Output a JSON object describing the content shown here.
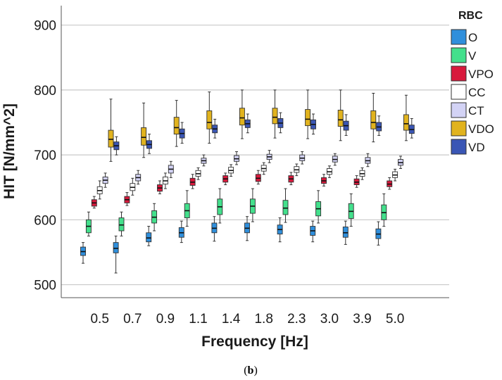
{
  "caption": {
    "open": "(",
    "letter": "b",
    "close": ")"
  },
  "chart_data": {
    "type": "box",
    "xlabel": "Frequency [Hz]",
    "ylabel": "HIT [N/mm^2]",
    "ylim": [
      480,
      930
    ],
    "yticks": [
      "500",
      "600",
      "700",
      "800",
      "900"
    ],
    "ytick_values": [
      500,
      600,
      700,
      800,
      900
    ],
    "grid": "horizontal",
    "legend_title": "RBC",
    "legend_position": "right",
    "categories": [
      "0.5",
      "0.7",
      "0.9",
      "1.1",
      "1.4",
      "1.8",
      "2.3",
      "3.0",
      "3.9",
      "5.0"
    ],
    "series": [
      {
        "name": "O",
        "color": "#2f8fdc",
        "boxes": [
          {
            "wlo": 533,
            "q1": 545,
            "med": 551,
            "q3": 558,
            "whi": 565
          },
          {
            "wlo": 518,
            "q1": 549,
            "med": 556,
            "q3": 565,
            "whi": 575
          },
          {
            "wlo": 560,
            "q1": 566,
            "med": 572,
            "q3": 580,
            "whi": 590
          },
          {
            "wlo": 565,
            "q1": 573,
            "med": 580,
            "q3": 588,
            "whi": 598
          },
          {
            "wlo": 567,
            "q1": 580,
            "med": 587,
            "q3": 595,
            "whi": 605
          },
          {
            "wlo": 568,
            "q1": 580,
            "med": 587,
            "q3": 595,
            "whi": 605
          },
          {
            "wlo": 566,
            "q1": 578,
            "med": 585,
            "q3": 592,
            "whi": 603
          },
          {
            "wlo": 566,
            "q1": 576,
            "med": 583,
            "q3": 590,
            "whi": 598
          },
          {
            "wlo": 562,
            "q1": 573,
            "med": 580,
            "q3": 589,
            "whi": 598
          },
          {
            "wlo": 561,
            "q1": 571,
            "med": 578,
            "q3": 586,
            "whi": 597
          }
        ]
      },
      {
        "name": "V",
        "color": "#43e08c",
        "boxes": [
          {
            "wlo": 575,
            "q1": 580,
            "med": 590,
            "q3": 600,
            "whi": 612
          },
          {
            "wlo": 575,
            "q1": 583,
            "med": 592,
            "q3": 603,
            "whi": 612
          },
          {
            "wlo": 583,
            "q1": 595,
            "med": 604,
            "q3": 614,
            "whi": 625
          },
          {
            "wlo": 590,
            "q1": 603,
            "med": 614,
            "q3": 625,
            "whi": 645
          },
          {
            "wlo": 595,
            "q1": 608,
            "med": 620,
            "q3": 632,
            "whi": 648
          },
          {
            "wlo": 597,
            "q1": 610,
            "med": 621,
            "q3": 632,
            "whi": 648
          },
          {
            "wlo": 596,
            "q1": 608,
            "med": 618,
            "q3": 630,
            "whi": 648
          },
          {
            "wlo": 595,
            "q1": 606,
            "med": 617,
            "q3": 628,
            "whi": 645
          },
          {
            "wlo": 590,
            "q1": 602,
            "med": 613,
            "q3": 625,
            "whi": 640
          },
          {
            "wlo": 590,
            "q1": 600,
            "med": 611,
            "q3": 623,
            "whi": 640
          }
        ]
      },
      {
        "name": "VPO",
        "color": "#d8193c",
        "boxes": [
          {
            "wlo": 618,
            "q1": 621,
            "med": 626,
            "q3": 631,
            "whi": 636
          },
          {
            "wlo": 622,
            "q1": 626,
            "med": 631,
            "q3": 636,
            "whi": 642
          },
          {
            "wlo": 640,
            "q1": 644,
            "med": 649,
            "q3": 654,
            "whi": 660
          },
          {
            "wlo": 648,
            "q1": 653,
            "med": 658,
            "q3": 664,
            "whi": 670
          },
          {
            "wlo": 654,
            "q1": 658,
            "med": 663,
            "q3": 668,
            "whi": 672
          },
          {
            "wlo": 655,
            "q1": 659,
            "med": 664,
            "q3": 670,
            "whi": 676
          },
          {
            "wlo": 654,
            "q1": 658,
            "med": 663,
            "q3": 668,
            "whi": 673
          },
          {
            "wlo": 652,
            "q1": 656,
            "med": 660,
            "q3": 665,
            "whi": 670
          },
          {
            "wlo": 650,
            "q1": 654,
            "med": 658,
            "q3": 663,
            "whi": 668
          },
          {
            "wlo": 647,
            "q1": 651,
            "med": 655,
            "q3": 660,
            "whi": 665
          }
        ]
      },
      {
        "name": "CC",
        "color": "#ffffff",
        "boxes": [
          {
            "wlo": 632,
            "q1": 640,
            "med": 645,
            "q3": 651,
            "whi": 660
          },
          {
            "wlo": 638,
            "q1": 645,
            "med": 650,
            "q3": 656,
            "whi": 664
          },
          {
            "wlo": 648,
            "q1": 655,
            "med": 660,
            "q3": 666,
            "whi": 672
          },
          {
            "wlo": 662,
            "q1": 667,
            "med": 671,
            "q3": 676,
            "whi": 680
          },
          {
            "wlo": 667,
            "q1": 672,
            "med": 676,
            "q3": 681,
            "whi": 685
          },
          {
            "wlo": 670,
            "q1": 675,
            "med": 679,
            "q3": 684,
            "whi": 688
          },
          {
            "wlo": 668,
            "q1": 673,
            "med": 677,
            "q3": 682,
            "whi": 686
          },
          {
            "wlo": 665,
            "q1": 670,
            "med": 674,
            "q3": 679,
            "whi": 683
          },
          {
            "wlo": 662,
            "q1": 667,
            "med": 671,
            "q3": 676,
            "whi": 680
          },
          {
            "wlo": 660,
            "q1": 665,
            "med": 669,
            "q3": 674,
            "whi": 678
          }
        ]
      },
      {
        "name": "CT",
        "color": "#d3d3f5",
        "boxes": [
          {
            "wlo": 650,
            "q1": 656,
            "med": 661,
            "q3": 666,
            "whi": 672
          },
          {
            "wlo": 655,
            "q1": 660,
            "med": 665,
            "q3": 670,
            "whi": 676
          },
          {
            "wlo": 665,
            "q1": 672,
            "med": 678,
            "q3": 684,
            "whi": 690
          },
          {
            "wlo": 683,
            "q1": 687,
            "med": 691,
            "q3": 695,
            "whi": 700
          },
          {
            "wlo": 685,
            "q1": 690,
            "med": 694,
            "q3": 699,
            "whi": 705
          },
          {
            "wlo": 688,
            "q1": 693,
            "med": 697,
            "q3": 701,
            "whi": 707
          },
          {
            "wlo": 686,
            "q1": 691,
            "med": 695,
            "q3": 700,
            "whi": 705
          },
          {
            "wlo": 684,
            "q1": 689,
            "med": 693,
            "q3": 698,
            "whi": 702
          },
          {
            "wlo": 682,
            "q1": 687,
            "med": 691,
            "q3": 696,
            "whi": 702
          },
          {
            "wlo": 679,
            "q1": 684,
            "med": 688,
            "q3": 693,
            "whi": 698
          }
        ]
      },
      {
        "name": "VDO",
        "color": "#e1b31e",
        "boxes": [
          {
            "wlo": 690,
            "q1": 712,
            "med": 724,
            "q3": 738,
            "whi": 786
          },
          {
            "wlo": 696,
            "q1": 715,
            "med": 727,
            "q3": 742,
            "whi": 780
          },
          {
            "wlo": 713,
            "q1": 732,
            "med": 742,
            "q3": 758,
            "whi": 784
          },
          {
            "wlo": 718,
            "q1": 740,
            "med": 750,
            "q3": 768,
            "whi": 797
          },
          {
            "wlo": 725,
            "q1": 746,
            "med": 757,
            "q3": 772,
            "whi": 800
          },
          {
            "wlo": 726,
            "q1": 748,
            "med": 758,
            "q3": 772,
            "whi": 800
          },
          {
            "wlo": 725,
            "q1": 745,
            "med": 755,
            "q3": 770,
            "whi": 800
          },
          {
            "wlo": 722,
            "q1": 744,
            "med": 754,
            "q3": 769,
            "whi": 800
          },
          {
            "wlo": 720,
            "q1": 740,
            "med": 750,
            "q3": 768,
            "whi": 795
          },
          {
            "wlo": 722,
            "q1": 738,
            "med": 748,
            "q3": 762,
            "whi": 792
          }
        ]
      },
      {
        "name": "VD",
        "color": "#3a56b5",
        "boxes": [
          {
            "wlo": 700,
            "q1": 708,
            "med": 714,
            "q3": 720,
            "whi": 728
          },
          {
            "wlo": 702,
            "q1": 710,
            "med": 716,
            "q3": 722,
            "whi": 732
          },
          {
            "wlo": 718,
            "q1": 726,
            "med": 733,
            "q3": 740,
            "whi": 750
          },
          {
            "wlo": 726,
            "q1": 734,
            "med": 740,
            "q3": 746,
            "whi": 755
          },
          {
            "wlo": 734,
            "q1": 742,
            "med": 748,
            "q3": 754,
            "whi": 763
          },
          {
            "wlo": 734,
            "q1": 742,
            "med": 749,
            "q3": 756,
            "whi": 765
          },
          {
            "wlo": 732,
            "q1": 740,
            "med": 747,
            "q3": 754,
            "whi": 763
          },
          {
            "wlo": 730,
            "q1": 738,
            "med": 745,
            "q3": 752,
            "whi": 762
          },
          {
            "wlo": 730,
            "q1": 737,
            "med": 743,
            "q3": 750,
            "whi": 760
          },
          {
            "wlo": 726,
            "q1": 733,
            "med": 739,
            "q3": 746,
            "whi": 756
          }
        ]
      }
    ]
  }
}
